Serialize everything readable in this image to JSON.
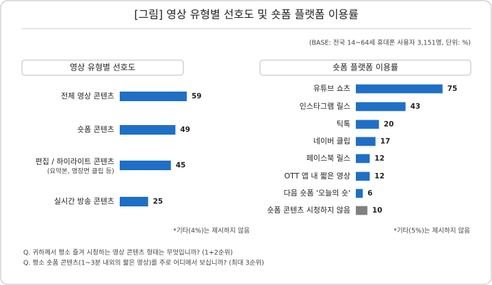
{
  "title": "[그림] 영상 유형별 선호도 및 숏폼 플랫폼 이용률",
  "base_note": "(BASE: 전국 14~64세 휴대폰 사용자 3,151명, 단위: %)",
  "questions": [
    "Q. 귀하께서 평소 즐겨 시청하는 영상 콘텐츠 형태는 무엇입니까? (1+2순위)",
    "Q. 평소 숏폼 콘텐츠(1~3분 내외의 짧은 영상)를 주로 어디에서 보십니까? (최대 3순위)"
  ],
  "chart_data": [
    {
      "type": "bar",
      "orientation": "horizontal",
      "title": "영상 유형별 선호도",
      "categories": [
        "전체 영상 콘텐츠",
        "숏폼 콘텐츠",
        "편집 / 하이라이트 콘텐츠",
        "실시간 방송 콘텐츠"
      ],
      "category_sublabels": [
        null,
        null,
        "(요약본, 명장면 클립 등)",
        null
      ],
      "values": [
        59,
        49,
        45,
        25
      ],
      "colors": [
        "#1f6fc6",
        "#1f6fc6",
        "#1f6fc6",
        "#1f6fc6"
      ],
      "note": "*기타(4%)는 제시하지 않음"
    },
    {
      "type": "bar",
      "orientation": "horizontal",
      "title": "숏폼 플랫폼 이용률",
      "categories": [
        "유튜브 쇼츠",
        "인스타그램 릴스",
        "틱톡",
        "네이버 클립",
        "페이스북 릴스",
        "OTT 앱 내 짧은 영상",
        "다음 숏폼 '오늘의 숏'",
        "숏폼 콘텐츠 시청하지 않음"
      ],
      "values": [
        75,
        43,
        20,
        17,
        12,
        12,
        6,
        10
      ],
      "colors": [
        "#1f6fc6",
        "#1f6fc6",
        "#1f6fc6",
        "#1f6fc6",
        "#1f6fc6",
        "#1f6fc6",
        "#1f6fc6",
        "#808080"
      ],
      "note": "*기타(5%)는 제시하지 않음"
    }
  ]
}
